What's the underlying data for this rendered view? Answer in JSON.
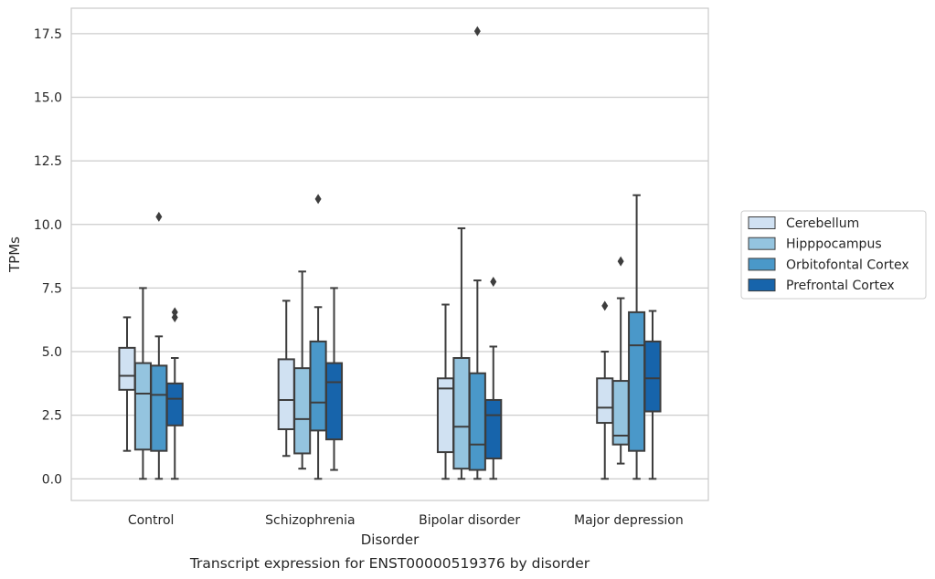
{
  "chart_data": {
    "type": "box",
    "caption": "Transcript expression for ENST00000519376 by disorder",
    "xlabel": "Disorder",
    "ylabel": "TPMs",
    "ylim": [
      -0.85,
      18.5
    ],
    "yticks": [
      "0.0",
      "2.5",
      "5.0",
      "7.5",
      "10.0",
      "12.5",
      "15.0",
      "17.5"
    ],
    "grid": "horizontal",
    "legend_position": "right, outside",
    "categories": [
      "Control",
      "Schizophrenia",
      "Bipolar disorder",
      "Major depression"
    ],
    "series": [
      {
        "name": "Cerebellum",
        "color": "#d0e1f2",
        "boxes": [
          {
            "low": 1.1,
            "q1": 3.5,
            "median": 4.05,
            "q3": 5.15,
            "high": 6.35,
            "outliers": []
          },
          {
            "low": 0.9,
            "q1": 1.95,
            "median": 3.1,
            "q3": 4.7,
            "high": 7.0,
            "outliers": []
          },
          {
            "low": 0.0,
            "q1": 1.05,
            "median": 3.55,
            "q3": 3.95,
            "high": 6.85,
            "outliers": []
          },
          {
            "low": 0.0,
            "q1": 2.2,
            "median": 2.8,
            "q3": 3.95,
            "high": 5.0,
            "outliers": [
              6.8
            ]
          }
        ]
      },
      {
        "name": "Hipppocampus",
        "color": "#94c4df",
        "boxes": [
          {
            "low": 0.0,
            "q1": 1.15,
            "median": 3.35,
            "q3": 4.55,
            "high": 7.5,
            "outliers": []
          },
          {
            "low": 0.4,
            "q1": 1.0,
            "median": 2.35,
            "q3": 4.35,
            "high": 8.15,
            "outliers": []
          },
          {
            "low": 0.0,
            "q1": 0.4,
            "median": 2.05,
            "q3": 4.75,
            "high": 9.85,
            "outliers": []
          },
          {
            "low": 0.6,
            "q1": 1.35,
            "median": 1.7,
            "q3": 3.85,
            "high": 7.1,
            "outliers": [
              8.55
            ]
          }
        ]
      },
      {
        "name": "Orbitofontal Cortex",
        "color": "#4a98c9",
        "boxes": [
          {
            "low": 0.0,
            "q1": 1.1,
            "median": 3.3,
            "q3": 4.45,
            "high": 5.6,
            "outliers": [
              10.3
            ]
          },
          {
            "low": 0.0,
            "q1": 1.9,
            "median": 3.0,
            "q3": 5.4,
            "high": 6.75,
            "outliers": [
              11.0
            ]
          },
          {
            "low": 0.0,
            "q1": 0.35,
            "median": 1.35,
            "q3": 4.15,
            "high": 7.8,
            "outliers": [
              17.6
            ]
          },
          {
            "low": 0.0,
            "q1": 1.1,
            "median": 5.25,
            "q3": 6.55,
            "high": 11.15,
            "outliers": []
          }
        ]
      },
      {
        "name": "Prefrontal Cortex",
        "color": "#1764ab",
        "boxes": [
          {
            "low": 0.0,
            "q1": 2.1,
            "median": 3.15,
            "q3": 3.75,
            "high": 4.75,
            "outliers": [
              6.35,
              6.55
            ]
          },
          {
            "low": 0.35,
            "q1": 1.55,
            "median": 3.8,
            "q3": 4.55,
            "high": 7.5,
            "outliers": []
          },
          {
            "low": 0.0,
            "q1": 0.8,
            "median": 2.5,
            "q3": 3.1,
            "high": 5.2,
            "outliers": [
              7.75
            ]
          },
          {
            "low": 0.0,
            "q1": 2.65,
            "median": 3.95,
            "q3": 5.4,
            "high": 6.6,
            "outliers": []
          }
        ]
      }
    ]
  }
}
